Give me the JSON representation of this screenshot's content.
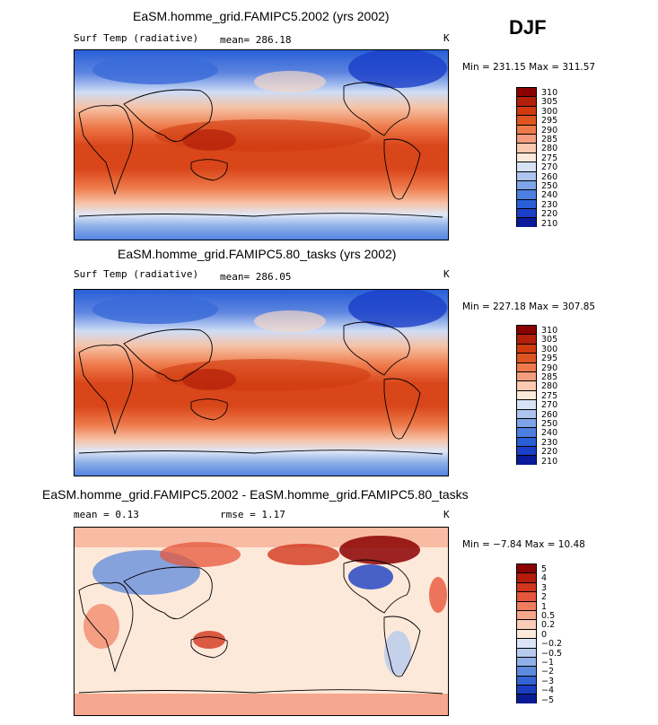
{
  "season": "DJF",
  "units": "K",
  "panels": [
    {
      "title": "EaSM.homme_grid.FAMIPC5.2002 (yrs 2002)",
      "variable": "Surf Temp (radiative)",
      "mean_label": "mean= 286.18",
      "minmax": "Min = 231.15 Max = 311.57",
      "legend": [
        "310",
        "305",
        "300",
        "295",
        "290",
        "285",
        "280",
        "275",
        "270",
        "260",
        "250",
        "240",
        "230",
        "220",
        "210"
      ],
      "colors": [
        "#8b0000",
        "#b3200a",
        "#cf3a0f",
        "#df5520",
        "#ee7a4b",
        "#f49d7c",
        "#fac9b0",
        "#fbeadb",
        "#d7e3f5",
        "#adc5ee",
        "#7ea3e6",
        "#4d7fe0",
        "#285fd6",
        "#1a3fc8",
        "#0a1a9a"
      ]
    },
    {
      "title": "EaSM.homme_grid.FAMIPC5.80_tasks (yrs 2002)",
      "variable": "Surf Temp (radiative)",
      "mean_label": "mean= 286.05",
      "minmax": "Min = 227.18 Max = 307.85",
      "legend": [
        "310",
        "305",
        "300",
        "295",
        "290",
        "285",
        "280",
        "275",
        "270",
        "260",
        "250",
        "240",
        "230",
        "220",
        "210"
      ],
      "colors": [
        "#8b0000",
        "#b3200a",
        "#cf3a0f",
        "#df5520",
        "#ee7a4b",
        "#f49d7c",
        "#fac9b0",
        "#fbeadb",
        "#d7e3f5",
        "#adc5ee",
        "#7ea3e6",
        "#4d7fe0",
        "#285fd6",
        "#1a3fc8",
        "#0a1a9a"
      ]
    },
    {
      "title": "EaSM.homme_grid.FAMIPC5.2002 - EaSM.homme_grid.FAMIPC5.80_tasks",
      "mean_label": "mean =    0.13",
      "rmse_label": "rmse =    1.17",
      "minmax": "Min =  −7.84 Max =  10.48",
      "legend": [
        "5",
        "4",
        "3",
        "2",
        "1",
        "0.5",
        "0.2",
        "0",
        "−0.2",
        "−0.5",
        "−1",
        "−2",
        "−3",
        "−4",
        "−5"
      ],
      "colors": [
        "#8b0000",
        "#b51c0c",
        "#d2361b",
        "#e6563a",
        "#f07d5e",
        "#f5a78c",
        "#f9cdb8",
        "#fde9da",
        "#dbe5f7",
        "#b7cbef",
        "#8fb0e8",
        "#5e8ade",
        "#3463d3",
        "#1a3ec2",
        "#0a1b96"
      ]
    }
  ]
}
